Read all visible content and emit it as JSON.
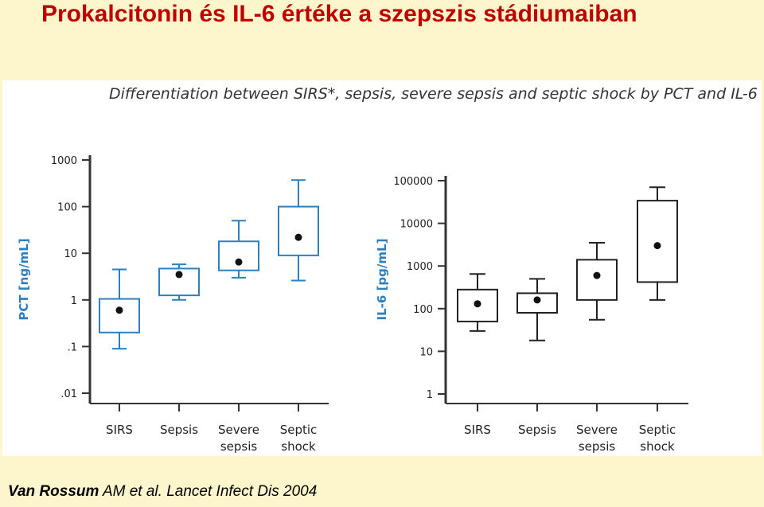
{
  "slide": {
    "title": "Prokalcitonin és IL-6 értéke a szepszis  stádiumaiban",
    "citation_author": "Van Rossum",
    "citation_rest": " AM et al. Lancet Infect Dis 2004"
  },
  "figure": {
    "title": "Differentiation between SIRS*, sepsis, severe sepsis and septic shock by PCT and IL-6"
  },
  "colors": {
    "title": "#c00000",
    "background": "#fdf6cc",
    "pct_series": "#2e7fbf",
    "il6_series": "#222222",
    "axis_label": "#2e7fbf"
  },
  "chart_data": [
    {
      "type": "box",
      "name": "pct-chart",
      "ylabel": "PCT [ng/mL]",
      "yscale": "log",
      "ylim": [
        0.01,
        1000
      ],
      "yticks": [
        {
          "value": 0.01,
          "label": ".01"
        },
        {
          "value": 0.1,
          "label": ".1"
        },
        {
          "value": 1,
          "label": "1"
        },
        {
          "value": 10,
          "label": "10"
        },
        {
          "value": 100,
          "label": "100"
        },
        {
          "value": 1000,
          "label": "1000"
        }
      ],
      "categories": [
        {
          "id": "sirs",
          "lines": [
            "SIRS"
          ]
        },
        {
          "id": "sepsis",
          "lines": [
            "Sepsis"
          ]
        },
        {
          "id": "severe-sepsis",
          "lines": [
            "Severe",
            "sepsis"
          ]
        },
        {
          "id": "septic-shock",
          "lines": [
            "Septic",
            "shock"
          ]
        }
      ],
      "boxes": [
        {
          "whisker_low": 0.09,
          "q1": 0.2,
          "median": 0.6,
          "q3": 1.05,
          "whisker_high": 4.5
        },
        {
          "whisker_low": 1.0,
          "q1": 1.25,
          "median": 3.5,
          "q3": 4.7,
          "whisker_high": 5.8
        },
        {
          "whisker_low": 3.0,
          "q1": 4.3,
          "median": 6.5,
          "q3": 18,
          "whisker_high": 50
        },
        {
          "whisker_low": 2.6,
          "q1": 9,
          "median": 22,
          "q3": 100,
          "whisker_high": 370
        }
      ],
      "grid": false
    },
    {
      "type": "box",
      "name": "il6-chart",
      "ylabel": "IL-6 [pg/mL]",
      "yscale": "log",
      "ylim": [
        1,
        100000
      ],
      "yticks": [
        {
          "value": 1,
          "label": "1"
        },
        {
          "value": 10,
          "label": "10"
        },
        {
          "value": 100,
          "label": "100"
        },
        {
          "value": 1000,
          "label": "1000"
        },
        {
          "value": 10000,
          "label": "10000"
        },
        {
          "value": 100000,
          "label": "100000"
        }
      ],
      "categories": [
        {
          "id": "sirs",
          "lines": [
            "SIRS"
          ]
        },
        {
          "id": "sepsis",
          "lines": [
            "Sepsis"
          ]
        },
        {
          "id": "severe-sepsis",
          "lines": [
            "Severe",
            "sepsis"
          ]
        },
        {
          "id": "septic-shock",
          "lines": [
            "Septic",
            "shock"
          ]
        }
      ],
      "boxes": [
        {
          "whisker_low": 30,
          "q1": 50,
          "median": 130,
          "q3": 280,
          "whisker_high": 650
        },
        {
          "whisker_low": 18,
          "q1": 80,
          "median": 160,
          "q3": 230,
          "whisker_high": 500
        },
        {
          "whisker_low": 55,
          "q1": 160,
          "median": 600,
          "q3": 1400,
          "whisker_high": 3500
        },
        {
          "whisker_low": 160,
          "q1": 420,
          "median": 3000,
          "q3": 34000,
          "whisker_high": 70000
        }
      ],
      "grid": false
    }
  ]
}
